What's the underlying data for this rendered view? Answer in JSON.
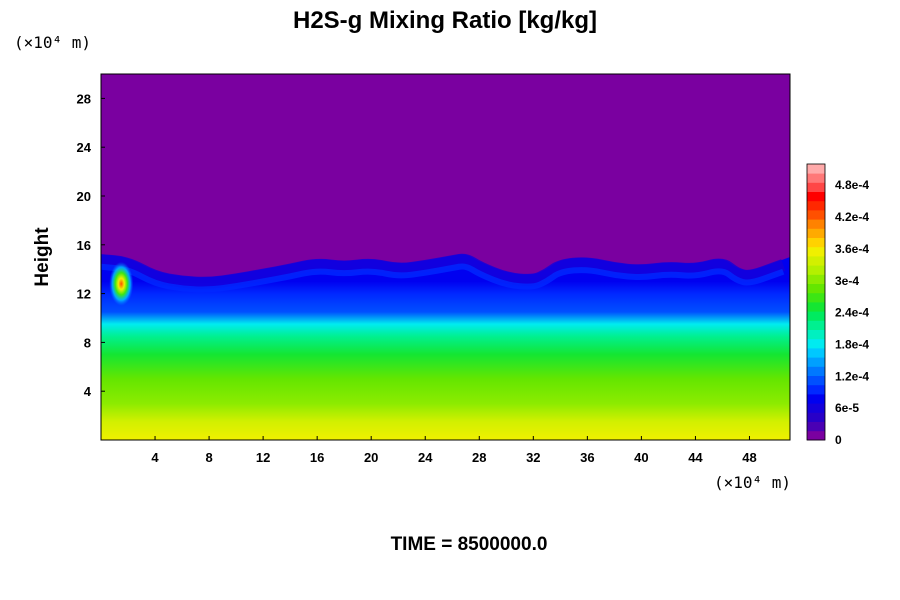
{
  "chart_data": {
    "type": "heatmap",
    "title": "H2S-g Mixing Ratio [kg/kg]",
    "ylabel": "Height",
    "x_unit_label": "(×10⁴ m)",
    "y_unit_label": "(×10⁴ m)",
    "footer": "TIME = 8500000.0",
    "xlim": [
      0,
      51
    ],
    "ylim": [
      0,
      30
    ],
    "x_ticks": [
      4,
      8,
      12,
      16,
      20,
      24,
      28,
      32,
      36,
      40,
      44,
      48
    ],
    "y_ticks": [
      4,
      8,
      12,
      16,
      20,
      24,
      28
    ],
    "colorbar": {
      "vmin": 0,
      "vmax": 0.00052,
      "labels": [
        {
          "value": 0,
          "text": "0"
        },
        {
          "value": 6e-05,
          "text": "6e-5"
        },
        {
          "value": 0.00012,
          "text": "1.2e-4"
        },
        {
          "value": 0.00018,
          "text": "1.8e-4"
        },
        {
          "value": 0.00024,
          "text": "2.4e-4"
        },
        {
          "value": 0.0003,
          "text": "3e-4"
        },
        {
          "value": 0.00036,
          "text": "3.6e-4"
        },
        {
          "value": 0.00042,
          "text": "4.2e-4"
        },
        {
          "value": 0.00048,
          "text": "4.8e-4"
        }
      ],
      "colors": [
        "#7a00a0",
        "#4a00b4",
        "#2800c8",
        "#1400dc",
        "#0000f0",
        "#0028ff",
        "#0050ff",
        "#0078ff",
        "#00a0ff",
        "#00c8ff",
        "#00ebf0",
        "#00f0c0",
        "#00f090",
        "#00eb60",
        "#14e632",
        "#3ce614",
        "#64e600",
        "#8ceb00",
        "#b4f000",
        "#d2f000",
        "#f0f000",
        "#ffd200",
        "#ffaa00",
        "#ff8200",
        "#ff5000",
        "#ff2800",
        "#ff0000",
        "#ff4646",
        "#ff7878",
        "#ffaaaa"
      ]
    },
    "vertical_profile": [
      {
        "height": 0.0,
        "value": 0.00035
      },
      {
        "height": 1.5,
        "value": 0.00034
      },
      {
        "height": 3.0,
        "value": 0.00031
      },
      {
        "height": 5.0,
        "value": 0.00028
      },
      {
        "height": 7.0,
        "value": 0.00025
      },
      {
        "height": 8.5,
        "value": 0.00022
      },
      {
        "height": 9.5,
        "value": 0.00018
      },
      {
        "height": 10.5,
        "value": 0.00012
      },
      {
        "height": 12.0,
        "value": 9e-05
      },
      {
        "height": 13.0,
        "value": 8e-05
      },
      {
        "height": 13.5,
        "value": 7e-05
      }
    ],
    "upper_value": 0,
    "top_boundary": [
      {
        "x": 0,
        "height": 15.2
      },
      {
        "x": 2,
        "height": 15.0
      },
      {
        "x": 4,
        "height": 13.8
      },
      {
        "x": 6,
        "height": 13.4
      },
      {
        "x": 8,
        "height": 13.3
      },
      {
        "x": 10,
        "height": 13.6
      },
      {
        "x": 12,
        "height": 14.0
      },
      {
        "x": 14,
        "height": 14.4
      },
      {
        "x": 16,
        "height": 14.9
      },
      {
        "x": 18,
        "height": 14.6
      },
      {
        "x": 20,
        "height": 14.9
      },
      {
        "x": 22,
        "height": 14.4
      },
      {
        "x": 24,
        "height": 14.7
      },
      {
        "x": 26,
        "height": 15.1
      },
      {
        "x": 27,
        "height": 15.3
      },
      {
        "x": 28,
        "height": 14.6
      },
      {
        "x": 30,
        "height": 13.7
      },
      {
        "x": 32,
        "height": 13.5
      },
      {
        "x": 33,
        "height": 14.0
      },
      {
        "x": 34,
        "height": 14.8
      },
      {
        "x": 36,
        "height": 15.0
      },
      {
        "x": 38,
        "height": 14.5
      },
      {
        "x": 40,
        "height": 14.3
      },
      {
        "x": 42,
        "height": 14.6
      },
      {
        "x": 44,
        "height": 14.4
      },
      {
        "x": 46,
        "height": 15.0
      },
      {
        "x": 47,
        "height": 14.1
      },
      {
        "x": 48,
        "height": 13.8
      },
      {
        "x": 50,
        "height": 14.6
      },
      {
        "x": 51,
        "height": 15.0
      }
    ],
    "hotspot": {
      "x": 1.5,
      "height": 12.8,
      "value": 0.00046
    }
  }
}
